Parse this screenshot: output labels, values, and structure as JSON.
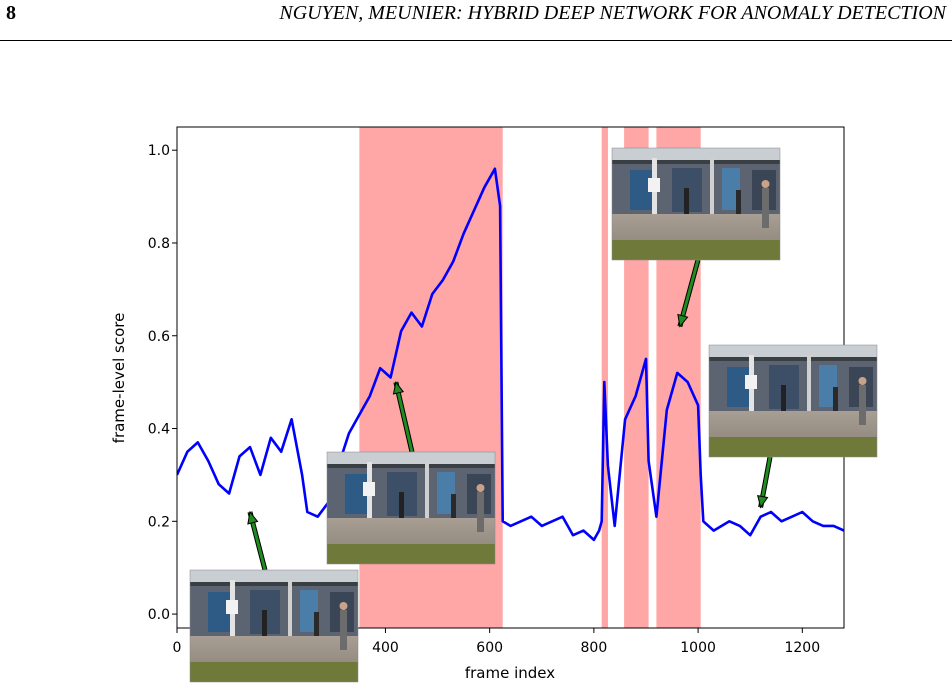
{
  "header": {
    "page_number": "8",
    "running_title": "NGUYEN, MEUNIER: HYBRID DEEP NETWORK FOR ANOMALY DETECTION"
  },
  "chart_data": {
    "type": "line",
    "xlabel": "frame index",
    "ylabel": "frame-level score",
    "xlim": [
      0,
      1280
    ],
    "ylim": [
      -0.03,
      1.05
    ],
    "xticks": [
      0,
      200,
      400,
      600,
      800,
      1000,
      1200
    ],
    "yticks": [
      0.0,
      0.2,
      0.4,
      0.6,
      0.8,
      1.0
    ],
    "grid": false,
    "legend": "none",
    "line_color": "#0000ff",
    "region_color": "#ffa6a6",
    "anomaly_regions": [
      [
        350,
        625
      ],
      [
        815,
        827
      ],
      [
        858,
        905
      ],
      [
        920,
        1005
      ]
    ],
    "series": [
      {
        "x": [
          0,
          20,
          40,
          60,
          80,
          100,
          120,
          140,
          160,
          180,
          200,
          220,
          240,
          250,
          270,
          290,
          310,
          330,
          350,
          370,
          390,
          410,
          430,
          450,
          470,
          490,
          510,
          530,
          550,
          570,
          590,
          610,
          620,
          625,
          640,
          660,
          680,
          700,
          720,
          740,
          760,
          780,
          800,
          810,
          815,
          820,
          827,
          840,
          860,
          880,
          900,
          905,
          920,
          940,
          960,
          980,
          1000,
          1005,
          1010,
          1030,
          1060,
          1080,
          1100,
          1120,
          1140,
          1160,
          1180,
          1200,
          1220,
          1240,
          1260,
          1280
        ],
        "y": [
          0.3,
          0.35,
          0.37,
          0.33,
          0.28,
          0.26,
          0.34,
          0.36,
          0.3,
          0.38,
          0.35,
          0.42,
          0.3,
          0.22,
          0.21,
          0.24,
          0.32,
          0.39,
          0.43,
          0.47,
          0.53,
          0.51,
          0.61,
          0.65,
          0.62,
          0.69,
          0.72,
          0.76,
          0.82,
          0.87,
          0.92,
          0.96,
          0.88,
          0.2,
          0.19,
          0.2,
          0.21,
          0.19,
          0.2,
          0.21,
          0.17,
          0.18,
          0.16,
          0.18,
          0.2,
          0.5,
          0.32,
          0.19,
          0.42,
          0.47,
          0.55,
          0.33,
          0.21,
          0.44,
          0.52,
          0.5,
          0.45,
          0.3,
          0.2,
          0.18,
          0.2,
          0.19,
          0.17,
          0.21,
          0.22,
          0.2,
          0.21,
          0.22,
          0.2,
          0.19,
          0.19,
          0.18
        ]
      }
    ],
    "insets": [
      {
        "frame": 120,
        "pointer": [
          140,
          0.22
        ]
      },
      {
        "frame": 420,
        "pointer": [
          420,
          0.5
        ]
      },
      {
        "frame": 970,
        "pointer": [
          965,
          0.62
        ]
      },
      {
        "frame": 1150,
        "pointer": [
          1120,
          0.23
        ]
      }
    ]
  }
}
